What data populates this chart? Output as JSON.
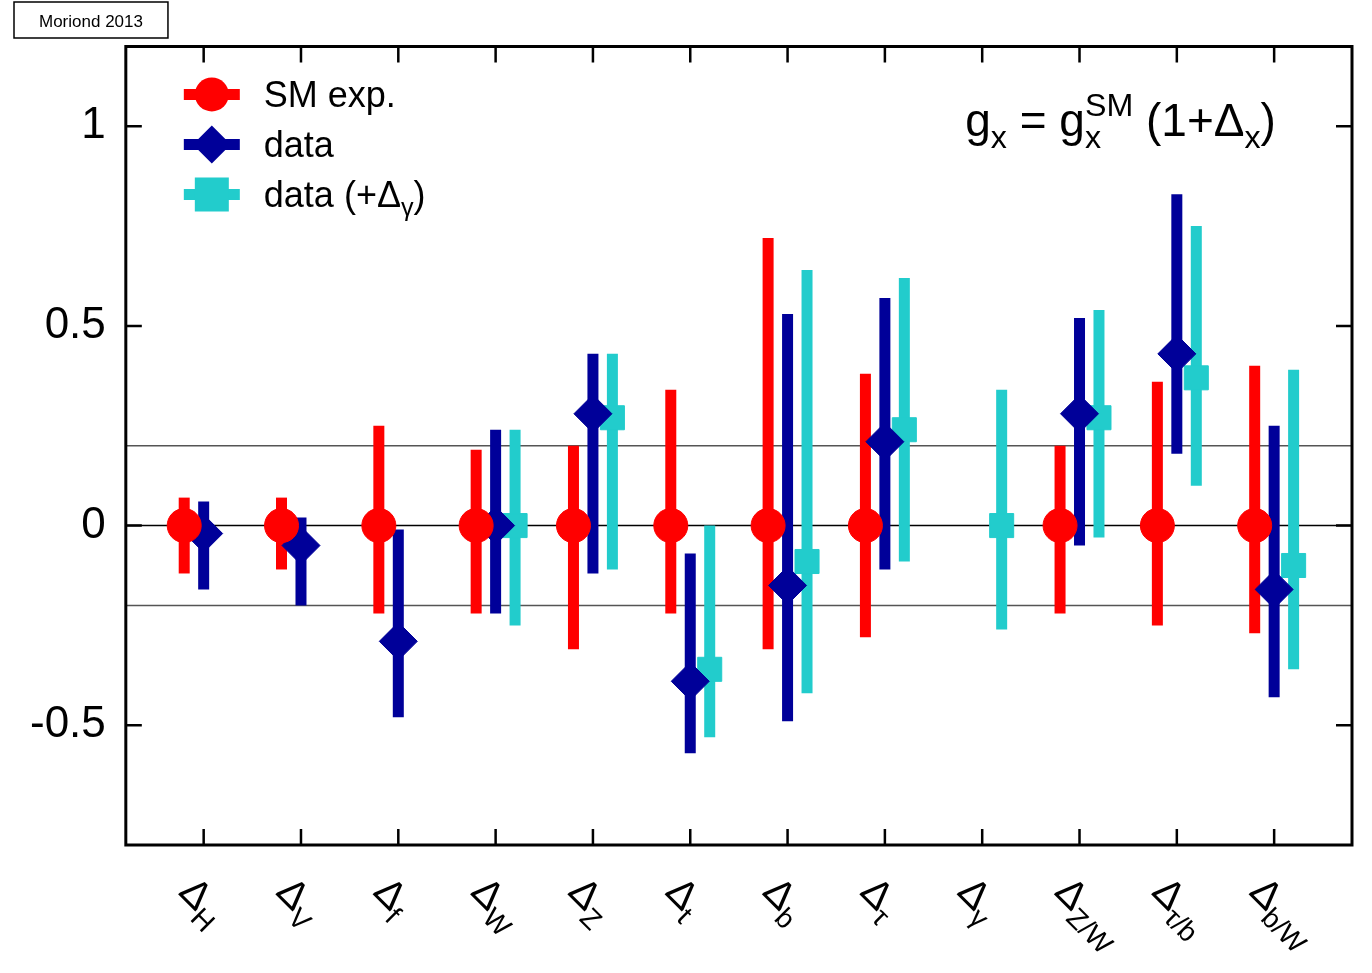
{
  "chart_data": {
    "type": "scatter",
    "categories": [
      "Δ$_{H}$",
      "Δ$_{V}$",
      "Δ$_{f}$",
      "Δ$_{W}$",
      "Δ$_{Z}$",
      "Δ$_{t}$",
      "Δ$_{b}$",
      "Δ$_{τ}$",
      "Δ$_{γ}$",
      "Δ$_{Z/W}$",
      "Δ$_{τ/b}$",
      "Δ$_{b/W}$"
    ],
    "series": [
      {
        "name": "SM exp.",
        "color": "#ff0000",
        "marker": "circle",
        "values": [
          0,
          0,
          0,
          0,
          0,
          0,
          0,
          0,
          null,
          0,
          0,
          0
        ],
        "errors": [
          [
            -0.12,
            0.07
          ],
          [
            -0.11,
            0.07
          ],
          [
            -0.22,
            0.25
          ],
          [
            -0.22,
            0.19
          ],
          [
            -0.31,
            0.2
          ],
          [
            -0.22,
            0.34
          ],
          [
            -0.31,
            0.72
          ],
          [
            -0.28,
            0.38
          ],
          null,
          [
            -0.22,
            0.2
          ],
          [
            -0.25,
            0.36
          ],
          [
            -0.27,
            0.4
          ]
        ]
      },
      {
        "name": "data",
        "color": "#000099",
        "marker": "diamond",
        "values": [
          -0.02,
          -0.05,
          -0.29,
          0,
          0.28,
          -0.39,
          -0.15,
          0.21,
          null,
          0.28,
          0.43,
          -0.16
        ],
        "errors": [
          [
            -0.16,
            0.06
          ],
          [
            -0.2,
            0.02
          ],
          [
            -0.48,
            -0.01
          ],
          [
            -0.22,
            0.24
          ],
          [
            -0.12,
            0.43
          ],
          [
            -0.57,
            -0.07
          ],
          [
            -0.49,
            0.53
          ],
          [
            -0.11,
            0.57
          ],
          null,
          [
            -0.05,
            0.52
          ],
          [
            0.18,
            0.83
          ],
          [
            -0.43,
            0.25
          ]
        ]
      },
      {
        "name": "data (+Δ$_{γ}$)",
        "color": "#22cccc",
        "marker": "square",
        "values": [
          null,
          null,
          null,
          0,
          0.27,
          -0.36,
          -0.09,
          0.24,
          0,
          0.27,
          0.37,
          -0.1
        ],
        "errors": [
          null,
          null,
          null,
          [
            -0.25,
            0.24
          ],
          [
            -0.11,
            0.43
          ],
          [
            -0.53,
            0
          ],
          [
            -0.42,
            0.64
          ],
          [
            -0.09,
            0.62
          ],
          [
            -0.26,
            0.34
          ],
          [
            -0.03,
            0.54
          ],
          [
            0.1,
            0.75
          ],
          [
            -0.36,
            0.39
          ]
        ]
      }
    ],
    "ylim": [
      -0.8,
      1.2
    ],
    "yticks": [
      -0.5,
      0,
      0.5,
      1
    ],
    "ref_lines": [
      {
        "axis": "y",
        "value": 0,
        "color": "#000000"
      },
      {
        "axis": "y",
        "value": 0.2,
        "color": "#555555"
      },
      {
        "axis": "y",
        "value": -0.2,
        "color": "#555555"
      }
    ],
    "legend": "top left",
    "grid": false,
    "annotations": [
      "Moriond 2013",
      "g$_{x}$ = g$_{x}$$^{SM}$ (1+Δ$_{x}$)"
    ]
  }
}
